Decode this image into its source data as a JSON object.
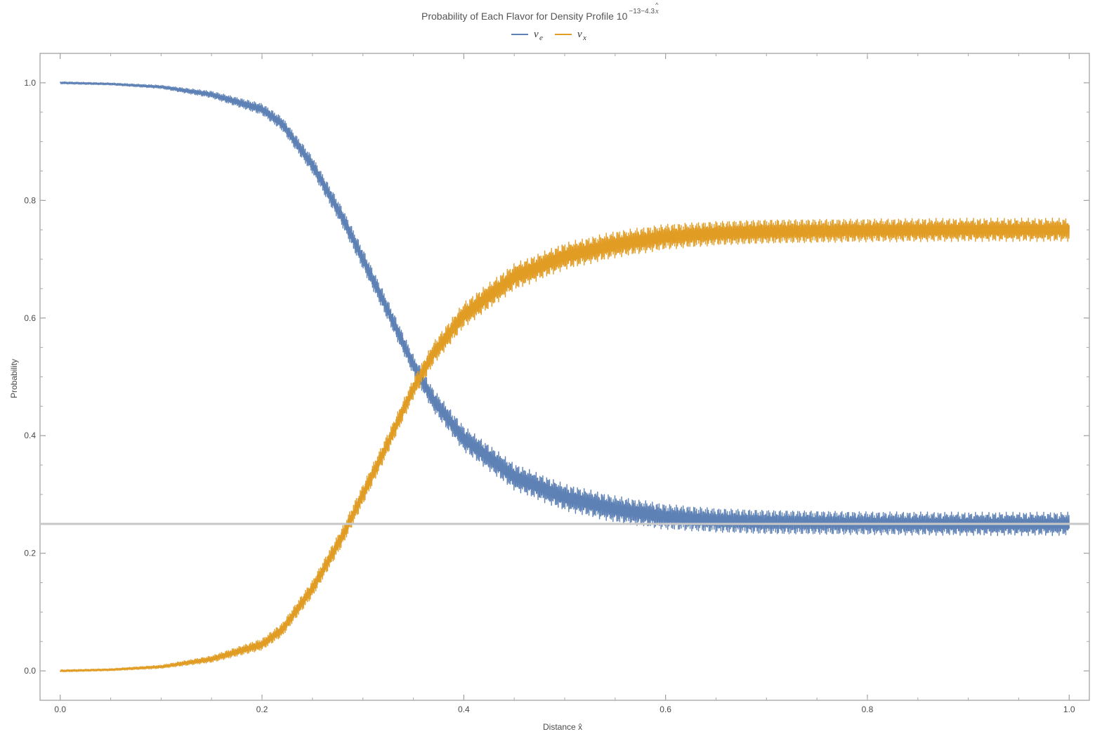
{
  "chart_data": {
    "type": "line",
    "title": {
      "main": "Probability of Each Flavor for Density Profile 10",
      "exponent": "−13−4.3",
      "exponent_var": "x",
      "exponent_hat": "^"
    },
    "xlabel": "Distance x̂",
    "ylabel": "Probability",
    "xlim": [
      -0.02,
      1.02
    ],
    "ylim": [
      -0.05,
      1.05
    ],
    "xticks": [
      0.0,
      0.2,
      0.4,
      0.6,
      0.8,
      1.0
    ],
    "xtick_labels": [
      "0.0",
      "0.2",
      "0.4",
      "0.6",
      "0.8",
      "1.0"
    ],
    "yticks": [
      0.0,
      0.2,
      0.4,
      0.6,
      0.8,
      1.0
    ],
    "ytick_labels": [
      "0.0",
      "0.2",
      "0.4",
      "0.6",
      "0.8",
      "1.0"
    ],
    "legend_position": "top-center",
    "reference_line": {
      "y": 0.25,
      "color": "#c8c8c8"
    },
    "series": [
      {
        "name": "ν",
        "subscript": "e",
        "color": "#5e81b5",
        "x": [
          0.0,
          0.05,
          0.1,
          0.15,
          0.2,
          0.22,
          0.25,
          0.28,
          0.3,
          0.32,
          0.35,
          0.37,
          0.4,
          0.45,
          0.5,
          0.55,
          0.6,
          0.65,
          0.7,
          0.8,
          0.9,
          1.0
        ],
        "mean": [
          1.0,
          0.998,
          0.993,
          0.98,
          0.955,
          0.93,
          0.86,
          0.77,
          0.7,
          0.63,
          0.52,
          0.46,
          0.395,
          0.33,
          0.295,
          0.275,
          0.262,
          0.256,
          0.253,
          0.251,
          0.25,
          0.25
        ],
        "amp": [
          0.002,
          0.002,
          0.003,
          0.006,
          0.01,
          0.012,
          0.015,
          0.017,
          0.018,
          0.018,
          0.018,
          0.02,
          0.022,
          0.023,
          0.023,
          0.023,
          0.022,
          0.021,
          0.021,
          0.02,
          0.02,
          0.02
        ]
      },
      {
        "name": "ν",
        "subscript": "x",
        "color": "#e19c24",
        "x": [
          0.0,
          0.05,
          0.1,
          0.15,
          0.2,
          0.22,
          0.25,
          0.28,
          0.3,
          0.32,
          0.35,
          0.37,
          0.4,
          0.45,
          0.5,
          0.55,
          0.6,
          0.65,
          0.7,
          0.8,
          0.9,
          1.0
        ],
        "mean": [
          0.0,
          0.002,
          0.007,
          0.02,
          0.045,
          0.07,
          0.14,
          0.23,
          0.3,
          0.37,
          0.48,
          0.54,
          0.605,
          0.67,
          0.705,
          0.725,
          0.738,
          0.744,
          0.747,
          0.749,
          0.75,
          0.75
        ],
        "amp": [
          0.002,
          0.002,
          0.003,
          0.006,
          0.01,
          0.012,
          0.015,
          0.017,
          0.018,
          0.018,
          0.018,
          0.02,
          0.022,
          0.023,
          0.023,
          0.023,
          0.022,
          0.021,
          0.021,
          0.02,
          0.02,
          0.02
        ]
      }
    ]
  }
}
